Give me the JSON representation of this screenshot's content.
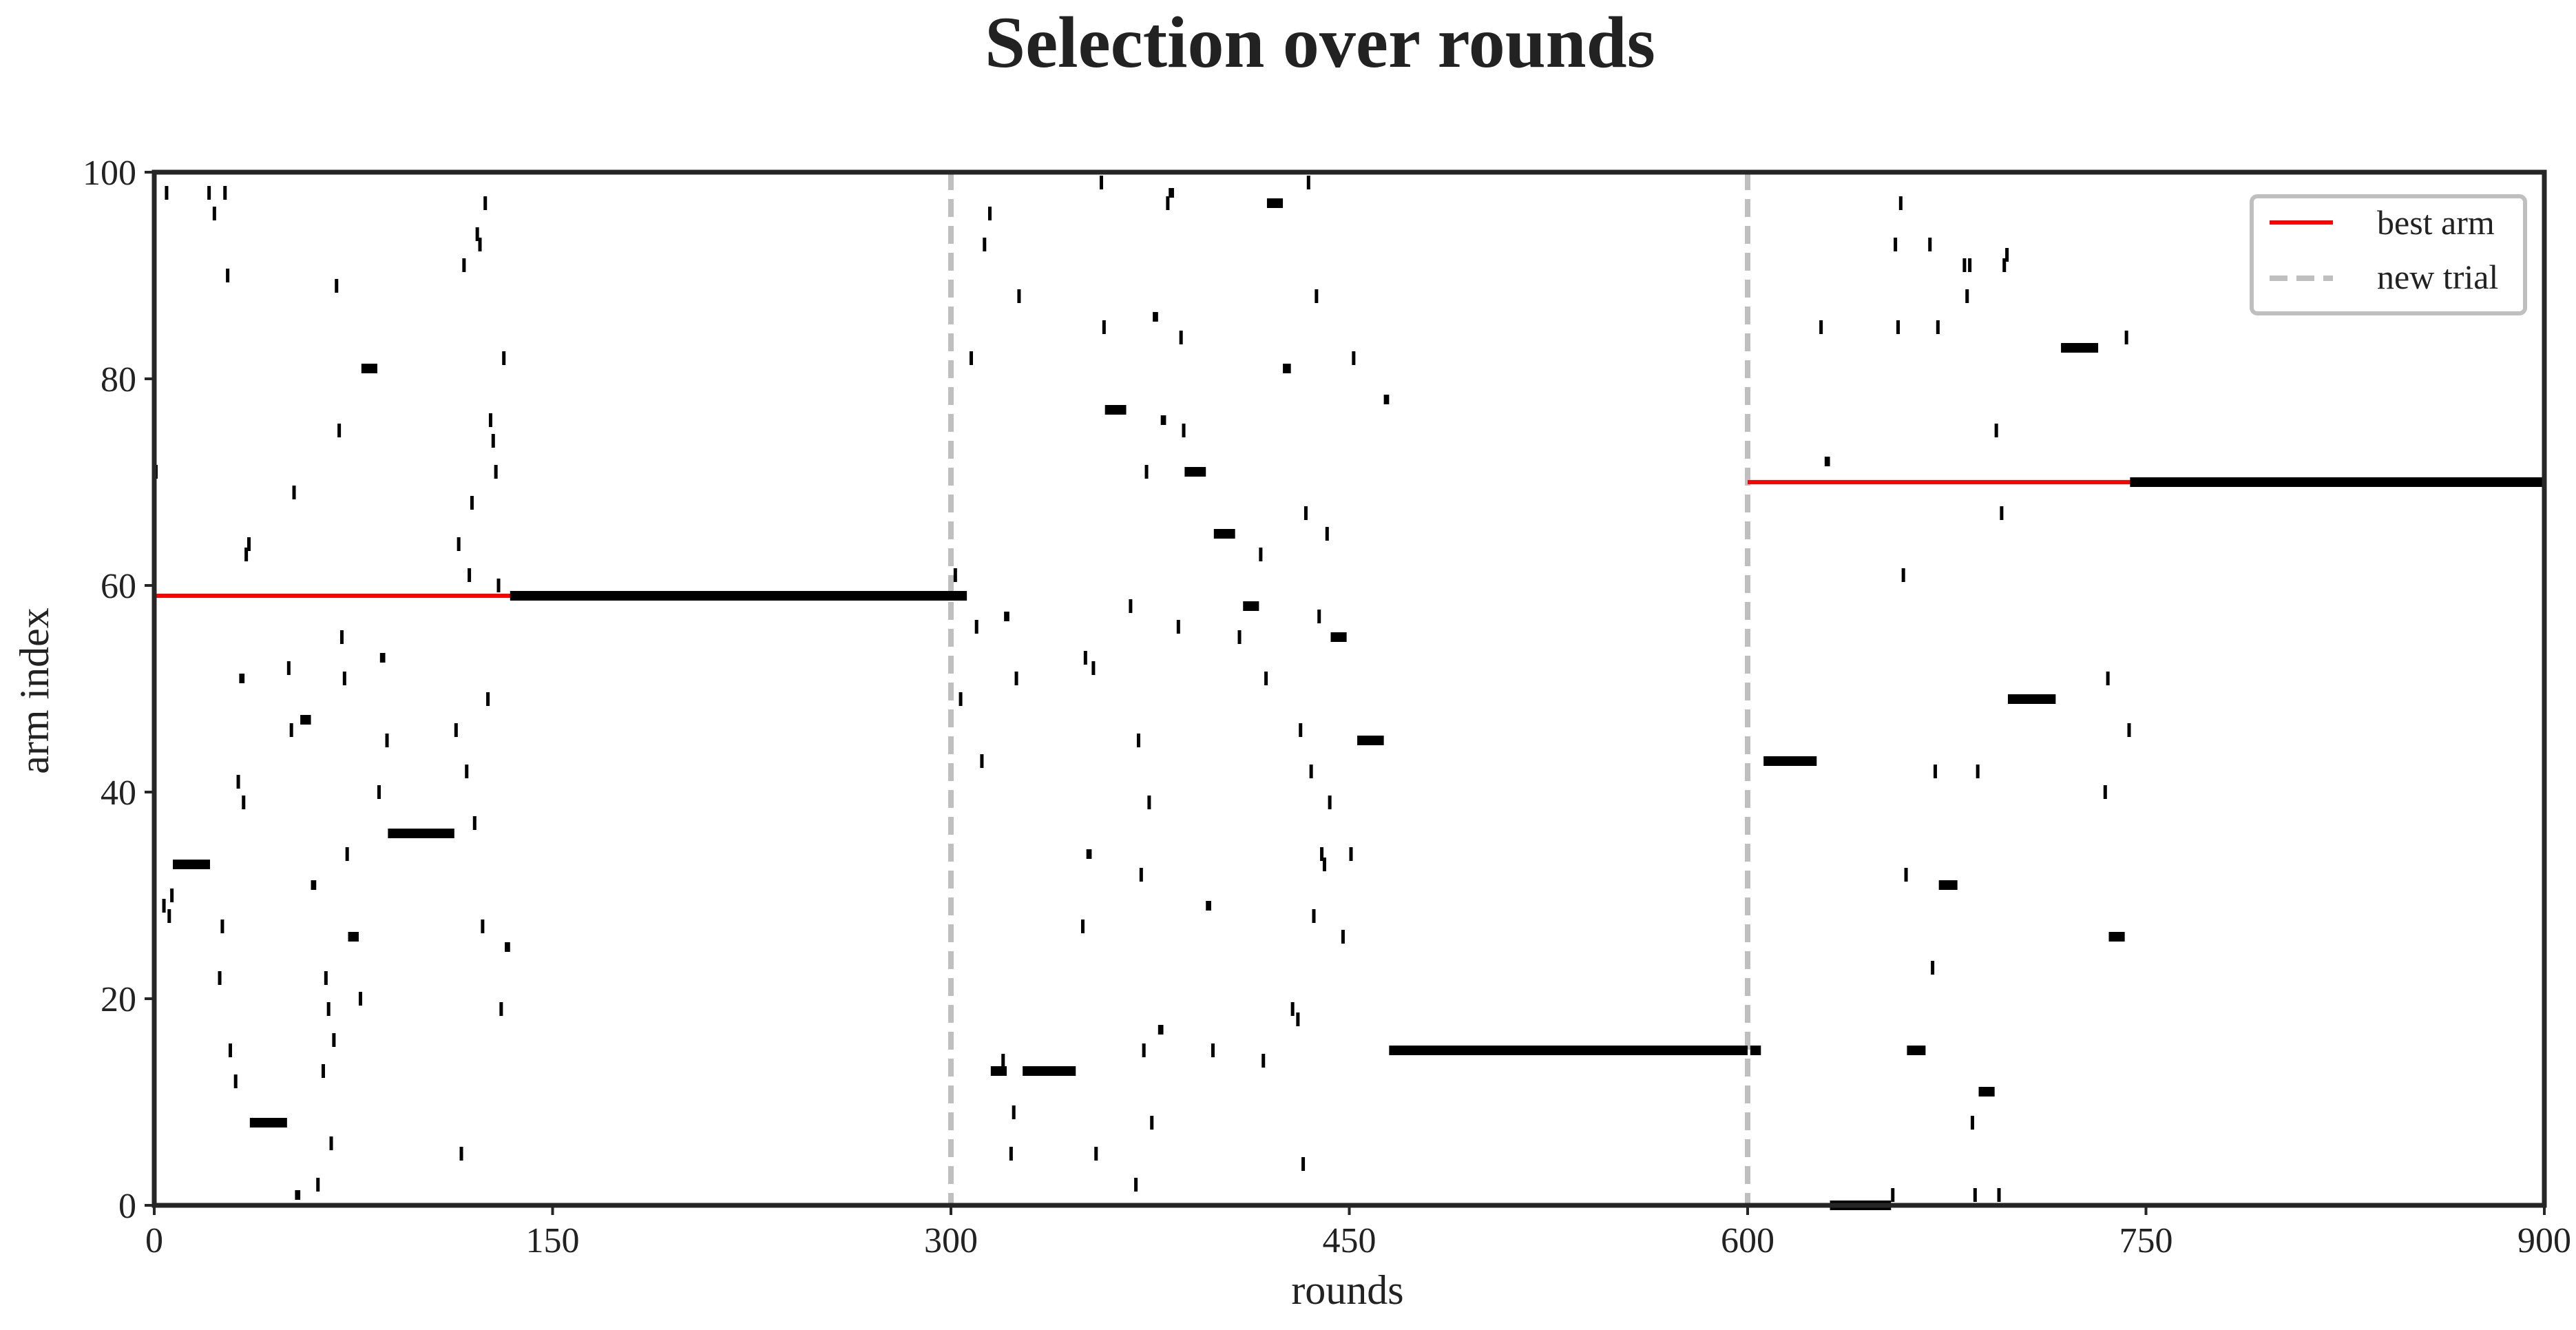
{
  "chart_data": {
    "type": "scatter",
    "title": "Selection over rounds",
    "xlabel": "rounds",
    "ylabel": "arm index",
    "xlim": [
      0,
      900
    ],
    "ylim": [
      0,
      100
    ],
    "xticks": [
      "0",
      "150",
      "300",
      "450",
      "600",
      "750",
      "900"
    ],
    "yticks": [
      "0",
      "20",
      "40",
      "60",
      "80",
      "100"
    ],
    "grid": false,
    "legend": {
      "placement": "top-right",
      "entries": [
        {
          "label": "best arm",
          "color": "#ff0000",
          "style": "solid"
        },
        {
          "label": "new trial",
          "color": "#bfbfbf",
          "style": "dashed"
        }
      ]
    },
    "new_trial_rounds": [
      300,
      600
    ],
    "best_arm": [
      {
        "start": 0,
        "end": 300,
        "arm": 59
      },
      {
        "start": 600,
        "end": 900,
        "arm": 70
      }
    ],
    "selections": [
      {
        "x": 0,
        "y": 71
      },
      {
        "x": 4,
        "y": 98
      },
      {
        "x": 3,
        "y": 29
      },
      {
        "x": 5,
        "y": 28
      },
      {
        "x": 6,
        "y": 30
      },
      {
        "x": 7,
        "y": 33,
        "w": 14
      },
      {
        "x": 20,
        "y": 98
      },
      {
        "x": 22,
        "y": 96
      },
      {
        "x": 24,
        "y": 22
      },
      {
        "x": 25,
        "y": 27
      },
      {
        "x": 26,
        "y": 98
      },
      {
        "x": 27,
        "y": 90
      },
      {
        "x": 28,
        "y": 15
      },
      {
        "x": 30,
        "y": 12
      },
      {
        "x": 31,
        "y": 41
      },
      {
        "x": 32,
        "y": 51,
        "w": 2
      },
      {
        "x": 33,
        "y": 39
      },
      {
        "x": 34,
        "y": 63
      },
      {
        "x": 35,
        "y": 64
      },
      {
        "x": 36,
        "y": 8,
        "w": 14
      },
      {
        "x": 50,
        "y": 52
      },
      {
        "x": 51,
        "y": 46
      },
      {
        "x": 52,
        "y": 69
      },
      {
        "x": 53,
        "y": 1,
        "w": 2
      },
      {
        "x": 55,
        "y": 47,
        "w": 4
      },
      {
        "x": 59,
        "y": 31,
        "w": 2
      },
      {
        "x": 61,
        "y": 2
      },
      {
        "x": 63,
        "y": 13
      },
      {
        "x": 64,
        "y": 22
      },
      {
        "x": 65,
        "y": 19
      },
      {
        "x": 66,
        "y": 6
      },
      {
        "x": 67,
        "y": 16
      },
      {
        "x": 68,
        "y": 89
      },
      {
        "x": 69,
        "y": 75
      },
      {
        "x": 70,
        "y": 55
      },
      {
        "x": 71,
        "y": 51
      },
      {
        "x": 72,
        "y": 34
      },
      {
        "x": 73,
        "y": 26,
        "w": 4
      },
      {
        "x": 77,
        "y": 20
      },
      {
        "x": 78,
        "y": 81,
        "w": 6
      },
      {
        "x": 84,
        "y": 40
      },
      {
        "x": 85,
        "y": 53,
        "w": 2
      },
      {
        "x": 87,
        "y": 45
      },
      {
        "x": 88,
        "y": 36,
        "w": 25
      },
      {
        "x": 113,
        "y": 46
      },
      {
        "x": 114,
        "y": 64
      },
      {
        "x": 115,
        "y": 5
      },
      {
        "x": 116,
        "y": 91
      },
      {
        "x": 117,
        "y": 42
      },
      {
        "x": 118,
        "y": 61
      },
      {
        "x": 119,
        "y": 68
      },
      {
        "x": 120,
        "y": 37
      },
      {
        "x": 121,
        "y": 94
      },
      {
        "x": 122,
        "y": 93
      },
      {
        "x": 123,
        "y": 27
      },
      {
        "x": 124,
        "y": 97
      },
      {
        "x": 125,
        "y": 49
      },
      {
        "x": 126,
        "y": 76
      },
      {
        "x": 127,
        "y": 74
      },
      {
        "x": 128,
        "y": 71
      },
      {
        "x": 129,
        "y": 60
      },
      {
        "x": 130,
        "y": 19
      },
      {
        "x": 131,
        "y": 82
      },
      {
        "x": 132,
        "y": 25,
        "w": 2
      },
      {
        "x": 134,
        "y": 59,
        "w": 172
      },
      {
        "x": 301,
        "y": 61
      },
      {
        "x": 303,
        "y": 49
      },
      {
        "x": 307,
        "y": 82
      },
      {
        "x": 309,
        "y": 56
      },
      {
        "x": 311,
        "y": 43
      },
      {
        "x": 312,
        "y": 93
      },
      {
        "x": 314,
        "y": 96
      },
      {
        "x": 315,
        "y": 13,
        "w": 6
      },
      {
        "x": 319,
        "y": 14
      },
      {
        "x": 320,
        "y": 57,
        "w": 2
      },
      {
        "x": 322,
        "y": 5
      },
      {
        "x": 323,
        "y": 9
      },
      {
        "x": 324,
        "y": 51
      },
      {
        "x": 325,
        "y": 88
      },
      {
        "x": 327,
        "y": 13,
        "w": 20
      },
      {
        "x": 349,
        "y": 27
      },
      {
        "x": 350,
        "y": 53
      },
      {
        "x": 351,
        "y": 34,
        "w": 2
      },
      {
        "x": 353,
        "y": 52
      },
      {
        "x": 354,
        "y": 5
      },
      {
        "x": 356,
        "y": 99
      },
      {
        "x": 357,
        "y": 85
      },
      {
        "x": 358,
        "y": 77,
        "w": 8
      },
      {
        "x": 367,
        "y": 58
      },
      {
        "x": 369,
        "y": 2
      },
      {
        "x": 370,
        "y": 45
      },
      {
        "x": 371,
        "y": 32
      },
      {
        "x": 372,
        "y": 15
      },
      {
        "x": 373,
        "y": 71
      },
      {
        "x": 374,
        "y": 39
      },
      {
        "x": 375,
        "y": 8
      },
      {
        "x": 376,
        "y": 86,
        "w": 2
      },
      {
        "x": 378,
        "y": 17,
        "w": 2
      },
      {
        "x": 379,
        "y": 76,
        "w": 2
      },
      {
        "x": 381,
        "y": 97
      },
      {
        "x": 382,
        "y": 98,
        "w": 2
      },
      {
        "x": 385,
        "y": 56
      },
      {
        "x": 386,
        "y": 84
      },
      {
        "x": 387,
        "y": 75
      },
      {
        "x": 388,
        "y": 71,
        "w": 8
      },
      {
        "x": 396,
        "y": 29,
        "w": 2
      },
      {
        "x": 398,
        "y": 15
      },
      {
        "x": 399,
        "y": 65,
        "w": 8
      },
      {
        "x": 408,
        "y": 55
      },
      {
        "x": 410,
        "y": 58,
        "w": 6
      },
      {
        "x": 416,
        "y": 63
      },
      {
        "x": 417,
        "y": 14
      },
      {
        "x": 418,
        "y": 51
      },
      {
        "x": 419,
        "y": 97,
        "w": 6
      },
      {
        "x": 425,
        "y": 81,
        "w": 3
      },
      {
        "x": 428,
        "y": 19
      },
      {
        "x": 430,
        "y": 18
      },
      {
        "x": 431,
        "y": 46
      },
      {
        "x": 432,
        "y": 4
      },
      {
        "x": 433,
        "y": 67
      },
      {
        "x": 434,
        "y": 99
      },
      {
        "x": 435,
        "y": 42
      },
      {
        "x": 436,
        "y": 28
      },
      {
        "x": 437,
        "y": 88
      },
      {
        "x": 438,
        "y": 57
      },
      {
        "x": 439,
        "y": 34
      },
      {
        "x": 440,
        "y": 33
      },
      {
        "x": 441,
        "y": 65
      },
      {
        "x": 442,
        "y": 39
      },
      {
        "x": 443,
        "y": 55,
        "w": 6
      },
      {
        "x": 447,
        "y": 26
      },
      {
        "x": 450,
        "y": 34
      },
      {
        "x": 451,
        "y": 82
      },
      {
        "x": 453,
        "y": 45,
        "w": 10
      },
      {
        "x": 463,
        "y": 78,
        "w": 2
      },
      {
        "x": 465,
        "y": 15,
        "w": 135
      },
      {
        "x": 601,
        "y": 15,
        "w": 4
      },
      {
        "x": 606,
        "y": 43,
        "w": 20
      },
      {
        "x": 627,
        "y": 85
      },
      {
        "x": 629,
        "y": 72,
        "w": 2
      },
      {
        "x": 631,
        "y": 0,
        "w": 23
      },
      {
        "x": 654,
        "y": 1
      },
      {
        "x": 655,
        "y": 93
      },
      {
        "x": 656,
        "y": 85
      },
      {
        "x": 657,
        "y": 97
      },
      {
        "x": 658,
        "y": 61
      },
      {
        "x": 659,
        "y": 32
      },
      {
        "x": 660,
        "y": 15,
        "w": 7
      },
      {
        "x": 668,
        "y": 93
      },
      {
        "x": 669,
        "y": 23
      },
      {
        "x": 670,
        "y": 42
      },
      {
        "x": 671,
        "y": 85
      },
      {
        "x": 672,
        "y": 31,
        "w": 7
      },
      {
        "x": 681,
        "y": 91
      },
      {
        "x": 682,
        "y": 88
      },
      {
        "x": 683,
        "y": 91
      },
      {
        "x": 684,
        "y": 8
      },
      {
        "x": 685,
        "y": 1
      },
      {
        "x": 686,
        "y": 42
      },
      {
        "x": 687,
        "y": 11,
        "w": 6
      },
      {
        "x": 693,
        "y": 75
      },
      {
        "x": 694,
        "y": 1
      },
      {
        "x": 695,
        "y": 67
      },
      {
        "x": 696,
        "y": 91
      },
      {
        "x": 697,
        "y": 92
      },
      {
        "x": 698,
        "y": 49,
        "w": 18
      },
      {
        "x": 718,
        "y": 83,
        "w": 14
      },
      {
        "x": 734,
        "y": 40
      },
      {
        "x": 735,
        "y": 51
      },
      {
        "x": 736,
        "y": 26,
        "w": 6
      },
      {
        "x": 742,
        "y": 84
      },
      {
        "x": 743,
        "y": 46
      },
      {
        "x": 744,
        "y": 70,
        "w": 156
      }
    ]
  }
}
